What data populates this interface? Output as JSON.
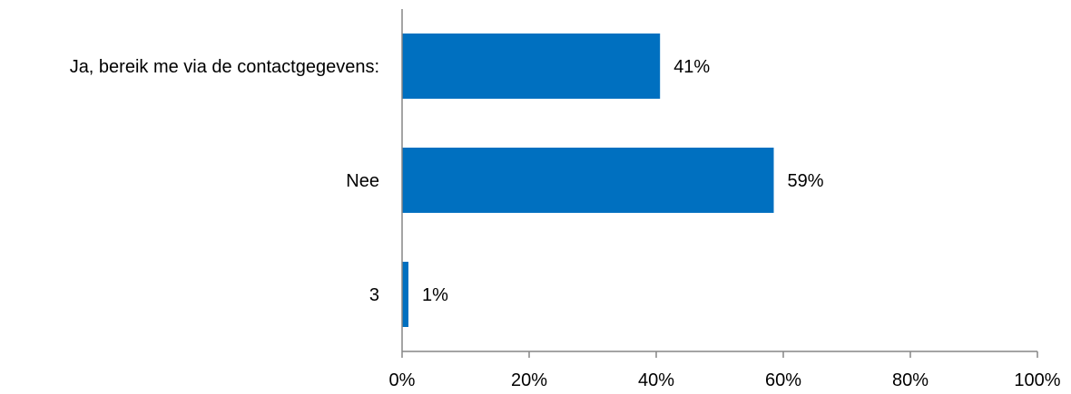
{
  "chart_data": {
    "type": "bar",
    "orientation": "horizontal",
    "categories": [
      "Ja, bereik me via de contactgegevens:",
      "Nee",
      "3"
    ],
    "values": [
      40.6,
      58.5,
      1.0
    ],
    "data_labels": [
      "41%",
      "59%",
      "1%"
    ],
    "x_ticks": [
      "0%",
      "20%",
      "40%",
      "60%",
      "80%",
      "100%"
    ],
    "xlim": [
      0,
      100
    ],
    "title": "",
    "xlabel": "",
    "ylabel": "",
    "grid": false,
    "legend": "none",
    "bar_color": "#0070C0",
    "axis_color": "#868686"
  }
}
